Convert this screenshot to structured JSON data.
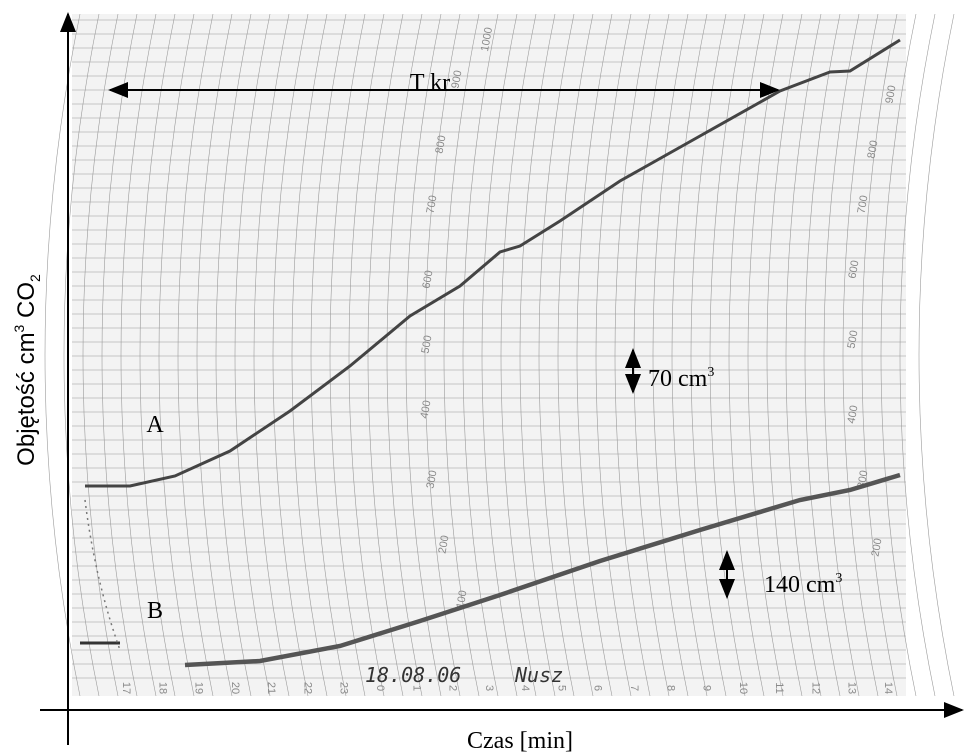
{
  "y_axis_label": {
    "text": "Objętość cm",
    "sup": "3",
    "mid": " CO",
    "sub": "2"
  },
  "x_axis_label": "Czas [min]",
  "annotations": {
    "t_kr": "T kr",
    "curve_a": "A",
    "curve_b": "B",
    "scale_a": {
      "text": "70 cm",
      "sup": "3"
    },
    "scale_b": {
      "text": "140 cm",
      "sup": "3"
    },
    "date": "18.08.06",
    "signature": "Nusz"
  },
  "paper_scale_left": [
    "100",
    "200",
    "300",
    "400",
    "500",
    "600",
    "700",
    "800",
    "900",
    "1000"
  ],
  "paper_scale_right": [
    "200",
    "300",
    "400",
    "500",
    "600",
    "700",
    "800",
    "900"
  ],
  "paper_hours": [
    "17",
    "18",
    "19",
    "20",
    "21",
    "22",
    "23",
    "0",
    "1",
    "2",
    "3",
    "4",
    "5",
    "6",
    "7",
    "8",
    "9",
    "10",
    "11",
    "12",
    "13",
    "14"
  ]
}
